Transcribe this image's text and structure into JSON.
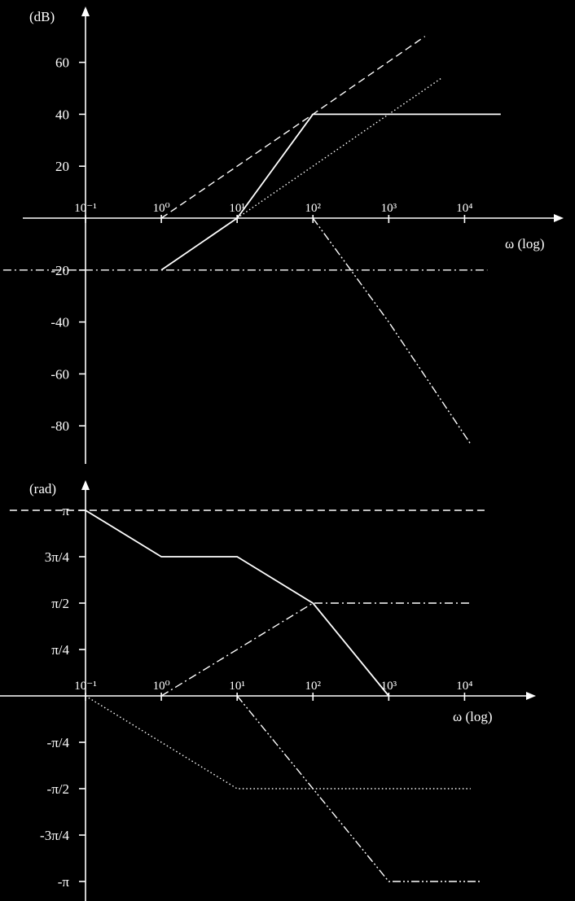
{
  "chart_data": [
    {
      "type": "line",
      "panel": "magnitude",
      "ylabel": "(dB)",
      "xlabel": "ω (log)",
      "x_scale": "log",
      "x_ticks": [
        0.1,
        1,
        10,
        100,
        1000,
        10000
      ],
      "x_tick_labels": [
        "10⁻¹",
        "10⁰",
        "10¹",
        "10²",
        "10³",
        "10⁴"
      ],
      "y_ticks": [
        60,
        40,
        20,
        -20,
        -40,
        -60,
        -80
      ],
      "y_tick_labels": [
        "60",
        "40",
        "20",
        "-20",
        "-40",
        "-60",
        "-80"
      ],
      "ylim": [
        -90,
        80
      ],
      "xlim": [
        0.01,
        100000
      ],
      "series": [
        {
          "style": "dashed",
          "points": [
            [
              1,
              0
            ],
            [
              10,
              20
            ],
            [
              100,
              40
            ],
            [
              3000,
              70
            ]
          ]
        },
        {
          "style": "solid",
          "points": [
            [
              1,
              -20
            ],
            [
              10,
              0
            ],
            [
              100,
              40
            ],
            [
              30000,
              40
            ]
          ]
        },
        {
          "style": "dotted",
          "points": [
            [
              10,
              0
            ],
            [
              100,
              20
            ],
            [
              5000,
              54
            ]
          ]
        },
        {
          "style": "dashdot",
          "points": [
            [
              0.005,
              -20
            ],
            [
              20000,
              -20
            ]
          ]
        },
        {
          "style": "dashdotdot",
          "points": [
            [
              100,
              0
            ],
            [
              1000,
              -40
            ],
            [
              12000,
              -87
            ]
          ]
        }
      ]
    },
    {
      "type": "line",
      "panel": "phase",
      "ylabel": "(rad)",
      "xlabel": "ω (log)",
      "x_scale": "log",
      "x_ticks": [
        0.1,
        1,
        10,
        100,
        1000,
        10000
      ],
      "x_tick_labels": [
        "10⁻¹",
        "10⁰",
        "10¹",
        "10²",
        "10³",
        "10⁴"
      ],
      "y_ticks": [
        1,
        0.75,
        0.5,
        0.25,
        -0.25,
        -0.5,
        -0.75,
        -1
      ],
      "y_unit": "π rad",
      "y_tick_labels": [
        "π",
        "3π/4",
        "π/2",
        "π/4",
        "-π/4",
        "-π/2",
        "-3π/4",
        "-π"
      ],
      "ylim": [
        -1.1,
        1.1
      ],
      "xlim": [
        0.01,
        100000
      ],
      "series": [
        {
          "style": "dashed",
          "points": [
            [
              0.01,
              1
            ],
            [
              20000,
              1
            ]
          ]
        },
        {
          "style": "solid",
          "points": [
            [
              0.1,
              1
            ],
            [
              1,
              0.75
            ],
            [
              10,
              0.75
            ],
            [
              100,
              0.5
            ],
            [
              1000,
              0
            ]
          ]
        },
        {
          "style": "dashdot",
          "points": [
            [
              1,
              0
            ],
            [
              100,
              0.5
            ],
            [
              12000,
              0.5
            ]
          ]
        },
        {
          "style": "dotted",
          "points": [
            [
              0.1,
              0
            ],
            [
              10,
              -0.5
            ],
            [
              12000,
              -0.5
            ]
          ]
        },
        {
          "style": "dashdotdot",
          "points": [
            [
              10,
              0
            ],
            [
              1000,
              -1
            ],
            [
              16000,
              -1
            ]
          ]
        }
      ]
    }
  ]
}
